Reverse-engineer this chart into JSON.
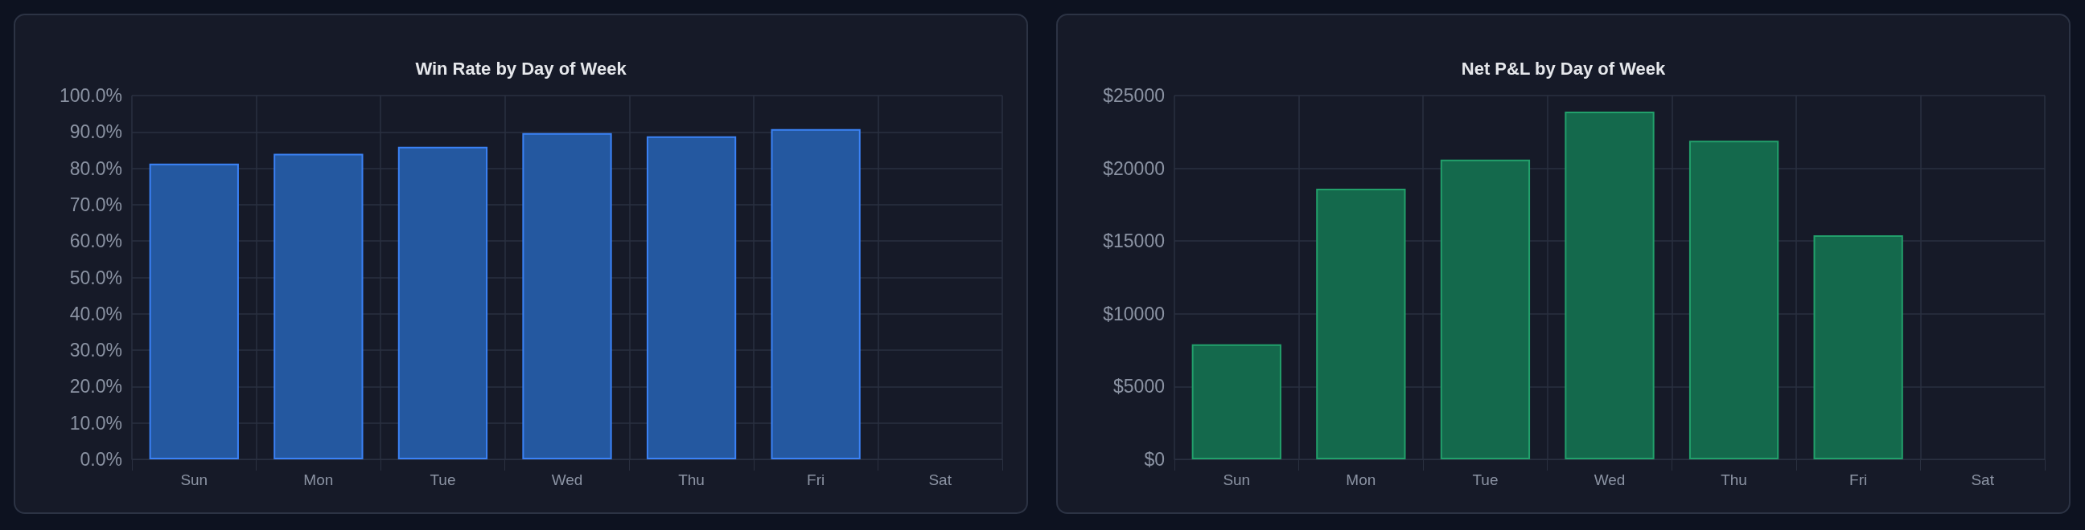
{
  "chart_data": [
    {
      "type": "bar",
      "title": "Win Rate by Day of Week",
      "categories": [
        "Sun",
        "Mon",
        "Tue",
        "Wed",
        "Thu",
        "Fri",
        "Sat"
      ],
      "series": [
        {
          "color": "#2458a0",
          "values": [
            81.3,
            84.0,
            85.9,
            89.7,
            88.8,
            90.8,
            null
          ]
        }
      ],
      "ylim": [
        0,
        100
      ],
      "yticks": [
        {
          "value": 0,
          "label": "0.0%"
        },
        {
          "value": 10,
          "label": "10.0%"
        },
        {
          "value": 20,
          "label": "20.0%"
        },
        {
          "value": 30,
          "label": "30.0%"
        },
        {
          "value": 40,
          "label": "40.0%"
        },
        {
          "value": 50,
          "label": "50.0%"
        },
        {
          "value": 60,
          "label": "60.0%"
        },
        {
          "value": 70,
          "label": "70.0%"
        },
        {
          "value": 80,
          "label": "80.0%"
        },
        {
          "value": 90,
          "label": "90.0%"
        },
        {
          "value": 100,
          "label": "100.0%"
        }
      ],
      "grid": true
    },
    {
      "type": "bar",
      "title": "Net P&L by Day of Week",
      "categories": [
        "Sun",
        "Mon",
        "Tue",
        "Wed",
        "Thu",
        "Fri",
        "Sat"
      ],
      "series": [
        {
          "color": "#14694c",
          "values": [
            7900,
            18600,
            20600,
            23900,
            21900,
            15400,
            null
          ]
        }
      ],
      "ylim": [
        0,
        25000
      ],
      "yticks": [
        {
          "value": 0,
          "label": "$0"
        },
        {
          "value": 5000,
          "label": "$5000"
        },
        {
          "value": 10000,
          "label": "$10000"
        },
        {
          "value": 15000,
          "label": "$15000"
        },
        {
          "value": 20000,
          "label": "$20000"
        },
        {
          "value": 25000,
          "label": "$25000"
        }
      ],
      "grid": true
    }
  ]
}
